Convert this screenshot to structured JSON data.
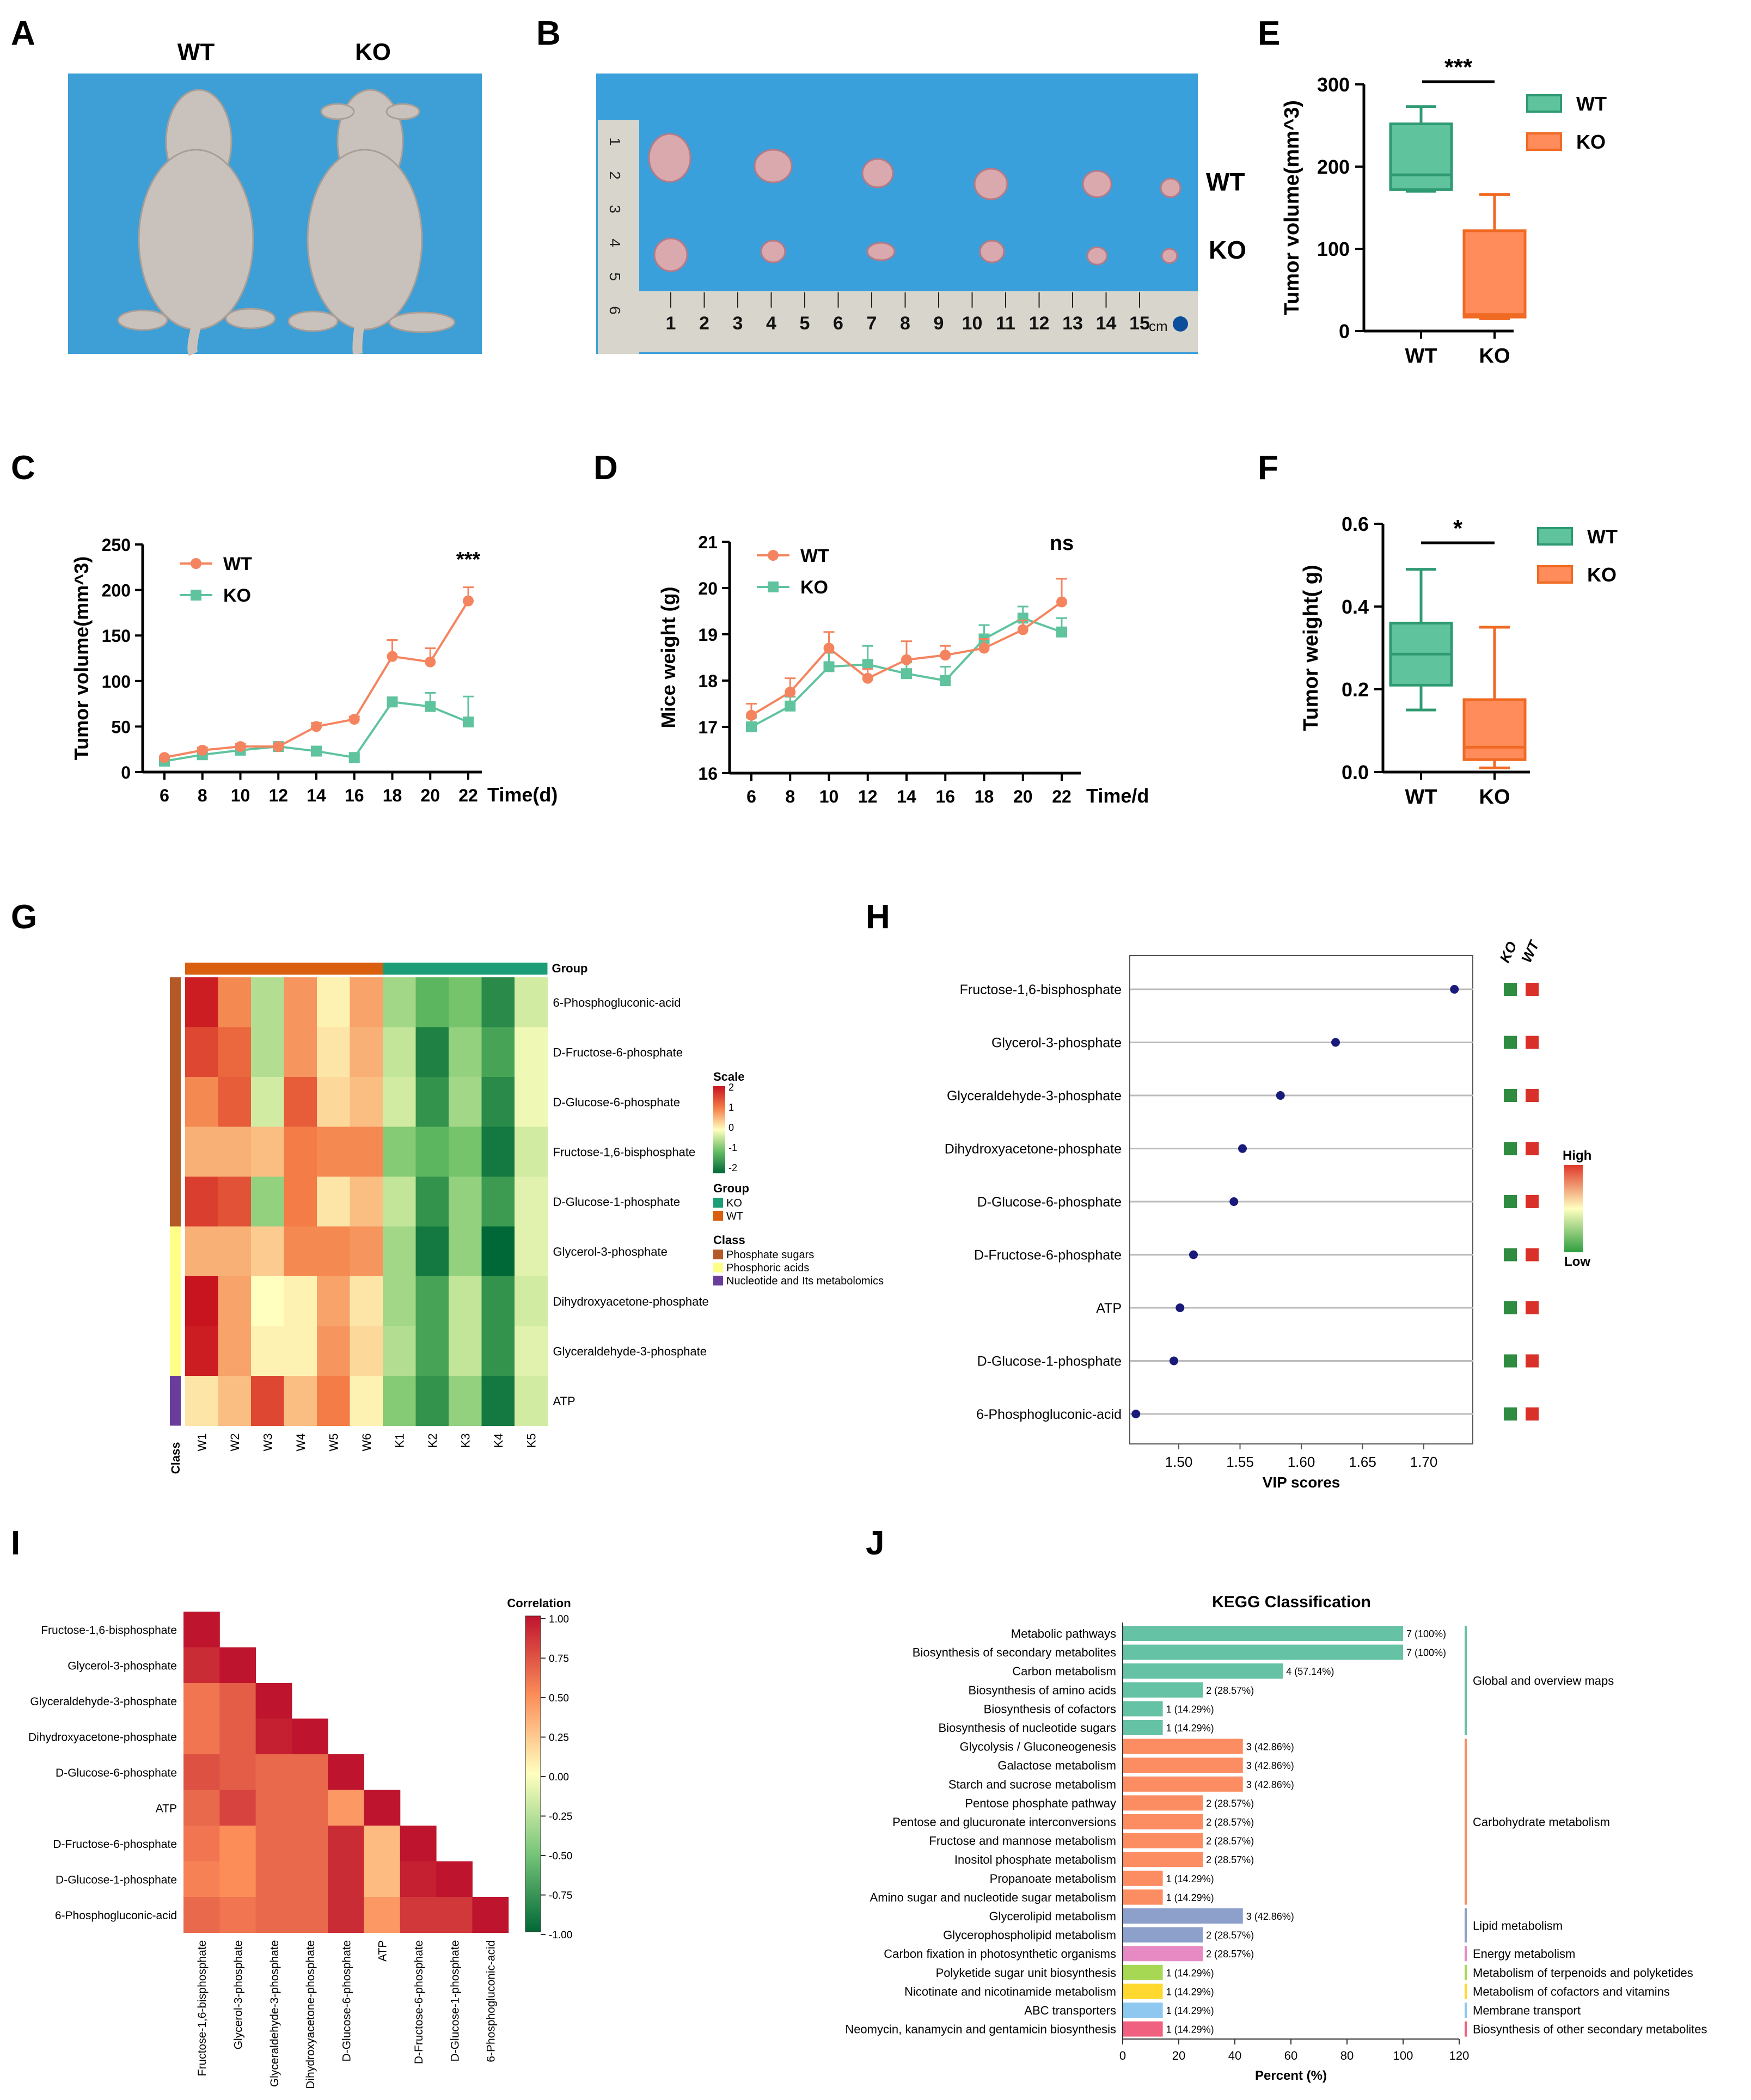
{
  "colors": {
    "wt_orange": "#f4845f",
    "ko_green": "#5fc39e",
    "wt_box_fill": "#5fc39e",
    "ko_box_fill": "#ff8c5a",
    "navy": "#1a1a7a",
    "photo_blue": "#3aa0dc"
  },
  "panel_labels": {
    "A": "A",
    "B": "B",
    "C": "C",
    "D": "D",
    "E": "E",
    "F": "F",
    "G": "G",
    "H": "H",
    "I": "I",
    "J": "J"
  },
  "panelA": {
    "wt": "WT",
    "ko": "KO"
  },
  "panelB": {
    "wt": "WT",
    "ko": "KO",
    "ruler_numbers": [
      "1",
      "2",
      "3",
      "4",
      "5",
      "6",
      "7",
      "8",
      "9",
      "10",
      "11",
      "12",
      "13",
      "14",
      "15"
    ],
    "ruler_unit": "cm",
    "side_numbers": [
      "1",
      "2",
      "3",
      "4",
      "5",
      "6"
    ]
  },
  "chart_data": [
    {
      "id": "E",
      "type": "box",
      "ylabel": "Tumor volume(mm^3)",
      "ylim": [
        0,
        300
      ],
      "yticks": [
        0,
        100,
        200,
        300
      ],
      "categories": [
        "WT",
        "KO"
      ],
      "boxes": [
        {
          "name": "WT",
          "min": 170,
          "q1": 172,
          "median": 190,
          "q3": 252,
          "max": 273
        },
        {
          "name": "KO",
          "min": 15,
          "q1": 17,
          "median": 20,
          "q3": 122,
          "max": 166
        }
      ],
      "significance": "***",
      "legend": [
        "WT",
        "KO"
      ]
    },
    {
      "id": "C",
      "type": "line",
      "ylabel": "Tumor volume(mm^3)",
      "xlabel": "Time(d)",
      "x": [
        6,
        8,
        10,
        12,
        14,
        16,
        18,
        20,
        22
      ],
      "ylim": [
        0,
        250
      ],
      "yticks": [
        0,
        50,
        100,
        150,
        200,
        250
      ],
      "series": [
        {
          "name": "WT",
          "values": [
            16,
            24,
            28,
            28,
            50,
            58,
            127,
            121,
            188
          ],
          "err": [
            0,
            3,
            3,
            2,
            4,
            3,
            18,
            15,
            15
          ]
        },
        {
          "name": "KO",
          "values": [
            12,
            19,
            24,
            28,
            23,
            16,
            77,
            72,
            55
          ],
          "err": [
            0,
            2,
            2,
            2,
            2,
            2,
            5,
            15,
            28
          ]
        }
      ],
      "significance": "***"
    },
    {
      "id": "D",
      "type": "line",
      "ylabel": "Mice weight (g)",
      "xlabel": "Time/d",
      "x": [
        6,
        8,
        10,
        12,
        14,
        16,
        18,
        20,
        22
      ],
      "ylim": [
        16,
        21
      ],
      "yticks": [
        16,
        17,
        18,
        19,
        20,
        21
      ],
      "series": [
        {
          "name": "WT",
          "values": [
            17.25,
            17.75,
            18.7,
            18.05,
            18.45,
            18.55,
            18.7,
            19.1,
            19.7
          ],
          "err": [
            0.25,
            0.3,
            0.35,
            0.2,
            0.4,
            0.2,
            0.2,
            0.2,
            0.5
          ]
        },
        {
          "name": "KO",
          "values": [
            17.0,
            17.45,
            18.3,
            18.35,
            18.15,
            18.0,
            18.9,
            19.35,
            19.05
          ],
          "err": [
            0.2,
            0.2,
            0.3,
            0.4,
            0.25,
            0.3,
            0.3,
            0.25,
            0.3
          ]
        }
      ],
      "significance": "ns"
    },
    {
      "id": "F",
      "type": "box",
      "ylabel": "Tumor weight( g)",
      "ylim": [
        0,
        0.6
      ],
      "yticks": [
        0.0,
        0.2,
        0.4,
        0.6
      ],
      "categories": [
        "WT",
        "KO"
      ],
      "boxes": [
        {
          "name": "WT",
          "min": 0.15,
          "q1": 0.21,
          "median": 0.285,
          "q3": 0.36,
          "max": 0.49
        },
        {
          "name": "KO",
          "min": 0.01,
          "q1": 0.03,
          "median": 0.06,
          "q3": 0.175,
          "max": 0.35
        }
      ],
      "significance": "*",
      "legend": [
        "WT",
        "KO"
      ]
    },
    {
      "id": "G",
      "type": "heatmap",
      "columns": [
        "W1",
        "W2",
        "W3",
        "W4",
        "W5",
        "W6",
        "K1",
        "K2",
        "K3",
        "K4",
        "K5"
      ],
      "rows": [
        "6-Phosphogluconic-acid",
        "D-Fructose-6-phosphate",
        "D-Glucose-6-phosphate",
        "Fructose-1,6-bisphosphate",
        "D-Glucose-1-phosphate",
        "Glycerol-3-phosphate",
        "Dihydroxyacetone-phosphate",
        "Glyceraldehyde-3-phosphate",
        "ATP"
      ],
      "values": [
        [
          1.9,
          0.9,
          -0.5,
          0.8,
          0.1,
          0.7,
          -0.6,
          -1.1,
          -0.9,
          -1.6,
          -0.3
        ],
        [
          1.5,
          1.2,
          -0.5,
          0.8,
          0.2,
          0.6,
          -0.4,
          -1.7,
          -0.7,
          -1.3,
          -0.1
        ],
        [
          0.9,
          1.3,
          -0.3,
          1.3,
          0.3,
          0.5,
          -0.3,
          -1.5,
          -0.6,
          -1.6,
          -0.1
        ],
        [
          0.6,
          0.6,
          0.5,
          1.0,
          0.9,
          0.9,
          -0.8,
          -1.1,
          -0.9,
          -1.8,
          -0.3
        ],
        [
          1.6,
          1.4,
          -0.7,
          1.0,
          0.2,
          0.5,
          -0.4,
          -1.5,
          -0.7,
          -1.4,
          -0.2
        ],
        [
          0.6,
          0.6,
          0.4,
          0.9,
          0.9,
          0.8,
          -0.6,
          -1.8,
          -0.7,
          -2.0,
          -0.2
        ],
        [
          2.0,
          0.7,
          0.0,
          0.1,
          0.7,
          0.2,
          -0.6,
          -1.3,
          -0.4,
          -1.5,
          -0.3
        ],
        [
          1.9,
          0.7,
          0.1,
          0.1,
          0.8,
          0.3,
          -0.5,
          -1.3,
          -0.4,
          -1.5,
          -0.2
        ],
        [
          0.2,
          0.5,
          1.5,
          0.5,
          1.0,
          0.1,
          -0.8,
          -1.5,
          -0.7,
          -1.8,
          -0.3
        ]
      ],
      "group_label": "Group",
      "class_label": "Class",
      "legend_scale_title": "Scale",
      "legend_scale_ticks": [
        "2",
        "1",
        "0",
        "-1",
        "-2"
      ],
      "legend_group_title": "Group",
      "legend_groups": [
        "KO",
        "WT"
      ],
      "legend_class_title": "Class",
      "legend_classes": [
        "Phosphate sugars",
        "Phosphoric acids",
        "Nucleotide and Its metabolomics"
      ]
    },
    {
      "id": "H",
      "type": "scatter",
      "xlabel": "VIP scores",
      "xlim": [
        1.46,
        1.74
      ],
      "xticks": [
        1.5,
        1.55,
        1.6,
        1.65,
        1.7
      ],
      "categories": [
        "Fructose-1,6-bisphosphate",
        "Glycerol-3-phosphate",
        "Glyceraldehyde-3-phosphate",
        "Dihydroxyacetone-phosphate",
        "D-Glucose-6-phosphate",
        "D-Fructose-6-phosphate",
        "ATP",
        "D-Glucose-1-phosphate",
        "6-Phosphogluconic-acid"
      ],
      "values": [
        1.725,
        1.628,
        1.583,
        1.552,
        1.545,
        1.512,
        1.501,
        1.496,
        1.465
      ],
      "group_columns": [
        "KO",
        "WT"
      ],
      "legend_high": "High",
      "legend_low": "Low"
    },
    {
      "id": "I",
      "type": "heatmap",
      "title": "Correlation",
      "labels": [
        "Fructose-1,6-bisphosphate",
        "Glycerol-3-phosphate",
        "Glyceraldehyde-3-phosphate",
        "Dihydroxyacetone-phosphate",
        "D-Glucose-6-phosphate",
        "ATP",
        "D-Fructose-6-phosphate",
        "D-Glucose-1-phosphate",
        "6-Phosphogluconic-acid"
      ],
      "values": [
        [
          1.0
        ],
        [
          0.9,
          1.0
        ],
        [
          0.6,
          0.7,
          1.0
        ],
        [
          0.6,
          0.7,
          0.95,
          1.0
        ],
        [
          0.75,
          0.7,
          0.65,
          0.65,
          1.0
        ],
        [
          0.65,
          0.8,
          0.65,
          0.65,
          0.45,
          1.0
        ],
        [
          0.6,
          0.5,
          0.65,
          0.65,
          0.9,
          0.3,
          1.0
        ],
        [
          0.55,
          0.5,
          0.65,
          0.65,
          0.9,
          0.3,
          0.95,
          1.0
        ],
        [
          0.65,
          0.6,
          0.65,
          0.65,
          0.9,
          0.45,
          0.85,
          0.85,
          1.0
        ]
      ],
      "legend_ticks": [
        "1.00",
        "0.75",
        "0.50",
        "0.25",
        "0.00",
        "-0.25",
        "-0.50",
        "-0.75",
        "-1.00"
      ]
    },
    {
      "id": "J",
      "type": "bar",
      "title": "KEGG Classification",
      "xlabel": "Percent (%)",
      "xlim": [
        0,
        120
      ],
      "xticks": [
        0,
        20,
        40,
        60,
        80,
        100,
        120
      ],
      "categories": [
        "Metabolic pathways",
        "Biosynthesis of secondary metabolites",
        "Carbon metabolism",
        "Biosynthesis of amino acids",
        "Biosynthesis of cofactors",
        "Biosynthesis of nucleotide sugars",
        "Glycolysis / Gluconeogenesis",
        "Galactose metabolism",
        "Starch and sucrose metabolism",
        "Pentose phosphate pathway",
        "Pentose and glucuronate interconversions",
        "Fructose and mannose metabolism",
        "Inositol phosphate metabolism",
        "Propanoate metabolism",
        "Amino sugar and nucleotide sugar metabolism",
        "Glycerolipid metabolism",
        "Glycerophospholipid metabolism",
        "Carbon fixation in photosynthetic organisms",
        "Polyketide sugar unit biosynthesis",
        "Nicotinate and nicotinamide metabolism",
        "ABC transporters",
        "Neomycin, kanamycin and gentamicin biosynthesis"
      ],
      "values": [
        100,
        100,
        57.14,
        28.57,
        14.29,
        14.29,
        42.86,
        42.86,
        42.86,
        28.57,
        28.57,
        28.57,
        28.57,
        14.29,
        14.29,
        42.86,
        28.57,
        28.57,
        14.29,
        14.29,
        14.29,
        14.29
      ],
      "labels": [
        "7 (100%)",
        "7 (100%)",
        "4 (57.14%)",
        "2 (28.57%)",
        "1 (14.29%)",
        "1 (14.29%)",
        "3 (42.86%)",
        "3 (42.86%)",
        "3 (42.86%)",
        "2 (28.57%)",
        "2 (28.57%)",
        "2 (28.57%)",
        "2 (28.57%)",
        "1 (14.29%)",
        "1 (14.29%)",
        "3 (42.86%)",
        "2 (28.57%)",
        "2 (28.57%)",
        "1 (14.29%)",
        "1 (14.29%)",
        "1 (14.29%)",
        "1 (14.29%)"
      ],
      "bar_colors": [
        "#66c2a5",
        "#66c2a5",
        "#66c2a5",
        "#66c2a5",
        "#66c2a5",
        "#66c2a5",
        "#fc8d62",
        "#fc8d62",
        "#fc8d62",
        "#fc8d62",
        "#fc8d62",
        "#fc8d62",
        "#fc8d62",
        "#fc8d62",
        "#fc8d62",
        "#8da0cb",
        "#8da0cb",
        "#e78ac3",
        "#a6d854",
        "#ffd92f",
        "#8ec8f0",
        "#f0607f"
      ],
      "groups": [
        "Global and overview maps",
        "Carbohydrate metabolism",
        "Lipid metabolism",
        "Energy metabolism",
        "Metabolism of terpenoids and polyketides",
        "Metabolism of cofactors and vitamins",
        "Membrane transport",
        "Biosynthesis of other secondary metabolites"
      ],
      "group_colors": [
        "#66c2a5",
        "#fc8d62",
        "#8da0cb",
        "#e78ac3",
        "#a6d854",
        "#ffd92f",
        "#8ec8f0",
        "#f0607f"
      ]
    }
  ]
}
